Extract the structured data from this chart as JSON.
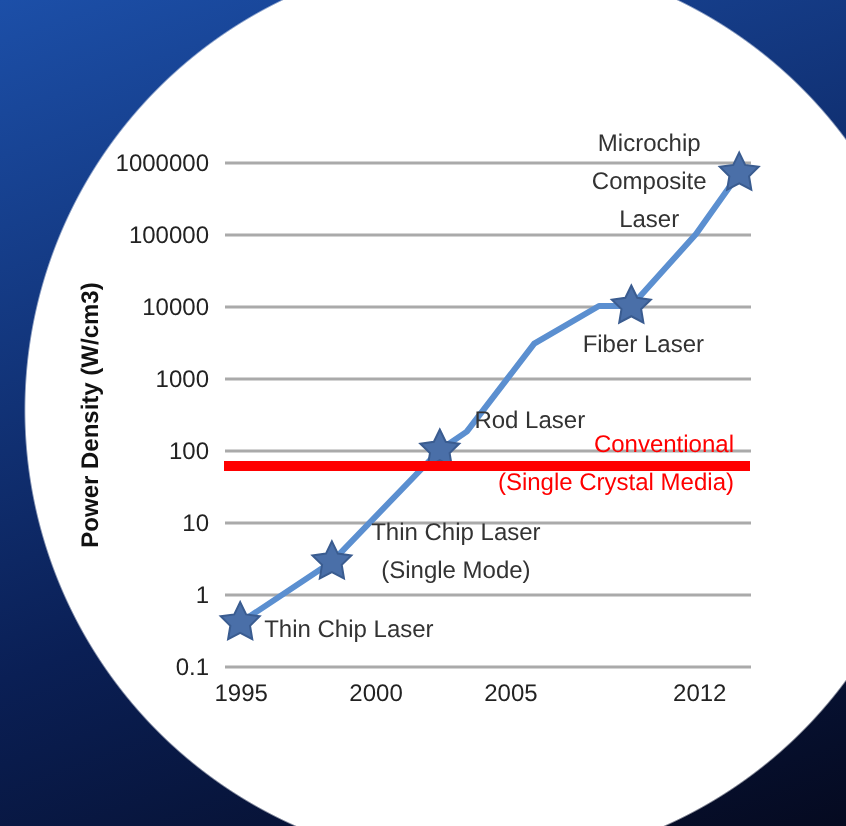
{
  "chart_data": {
    "type": "line",
    "ylabel": "Power Density (W/cm3)",
    "log": true,
    "ylim": [
      0.1,
      1000000
    ],
    "yticks": [
      0.1,
      1,
      10,
      100,
      1000,
      10000,
      100000,
      1000000
    ],
    "xlim": [
      1994.4,
      2013.9
    ],
    "xticks": [
      1995,
      2000,
      2005,
      2012
    ],
    "grid": "y",
    "series": [
      {
        "type": "line",
        "color": "#5b8fd0",
        "marker": "none",
        "x": [
          1995,
          1998.4,
          2002.4,
          2003.4,
          2005.9,
          2008.3,
          2009.5,
          2011.9,
          2013.5
        ],
        "values": [
          0.4,
          2.8,
          100,
          180,
          3000,
          10000,
          10000,
          100000,
          700000
        ]
      },
      {
        "type": "scatter",
        "color": "#4a6fa8",
        "marker": "star",
        "x": [
          1995,
          1998.4,
          2002.4,
          2009.5,
          2013.5
        ],
        "values": [
          0.4,
          2.8,
          100,
          10000,
          700000
        ]
      }
    ],
    "ref_lines": [
      {
        "axis": "y",
        "value": 60,
        "label": "Conventional\n(Single Crystal Media)",
        "color": "#ff0000"
      }
    ],
    "annotations": [
      {
        "text": "Thin Chip Laser",
        "x": 1995,
        "y": 0.4
      },
      {
        "text": "Thin Chip Laser\n(Single Mode)",
        "x": 1998.4,
        "y": 2.8
      },
      {
        "text": "Rod Laser",
        "x": 2002.4,
        "y": 100
      },
      {
        "text": "Fiber Laser",
        "x": 2009.5,
        "y": 10000
      },
      {
        "text": "Microchip\nComposite\nLaser",
        "x": 2013.5,
        "y": 700000
      }
    ]
  }
}
